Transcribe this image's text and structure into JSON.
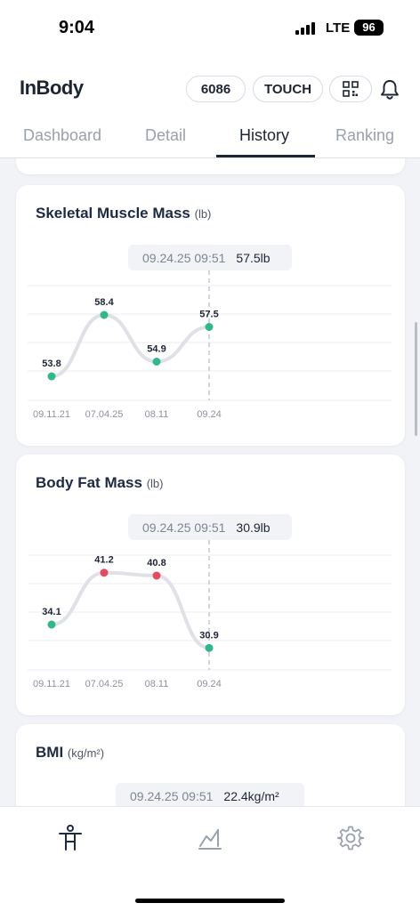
{
  "status_bar": {
    "time": "9:04",
    "network": "LTE",
    "battery": "96"
  },
  "header": {
    "logo": "InBody",
    "member_id": "6086",
    "touch_label": "TOUCH",
    "qr_icon": "qr-code-icon",
    "bell_icon": "bell-icon"
  },
  "tabs": [
    {
      "label": "Dashboard",
      "active": false
    },
    {
      "label": "Detail",
      "active": false
    },
    {
      "label": "History",
      "active": true
    },
    {
      "label": "Ranking",
      "active": false
    }
  ],
  "cards": {
    "skeletal": {
      "title": "Skeletal Muscle Mass",
      "unit": "(lb)",
      "tooltip_date": "09.24.25 09:51",
      "tooltip_value": "57.5lb"
    },
    "bodyfat": {
      "title": "Body Fat Mass",
      "unit": "(lb)",
      "tooltip_date": "09.24.25 09:51",
      "tooltip_value": "30.9lb"
    },
    "bmi": {
      "title": "BMI",
      "unit": "(kg/m²)",
      "tooltip_date": "09.24.25 09:51",
      "tooltip_value": "22.4kg/m²"
    }
  },
  "chart_data": [
    {
      "type": "line",
      "title": "Skeletal Muscle Mass",
      "x": [
        "09.11.21",
        "07.04.25",
        "08.11",
        "09.24"
      ],
      "series": [
        {
          "values": [
            53.8,
            58.4,
            54.9,
            57.5
          ],
          "point_status": [
            "normal",
            "normal",
            "normal",
            "normal"
          ]
        }
      ],
      "ylim": [
        52,
        60.6
      ],
      "grid": true,
      "colors": {
        "normal": "#2fb98a",
        "over": "#e64a5f",
        "line": "#dfe1e6"
      }
    },
    {
      "type": "line",
      "title": "Body Fat Mass",
      "x": [
        "09.11.21",
        "07.04.25",
        "08.11",
        "09.24"
      ],
      "series": [
        {
          "values": [
            34.1,
            41.2,
            40.8,
            30.9
          ],
          "point_status": [
            "normal",
            "over",
            "over",
            "normal"
          ]
        }
      ],
      "ylim": [
        27.9,
        43.6
      ],
      "grid": true,
      "colors": {
        "normal": "#2fb98a",
        "over": "#e64a5f",
        "line": "#dfe1e6"
      }
    }
  ],
  "bottom_nav": [
    {
      "icon": "body-icon",
      "active": true
    },
    {
      "icon": "chart-icon",
      "active": false
    },
    {
      "icon": "gear-icon",
      "active": false
    }
  ]
}
